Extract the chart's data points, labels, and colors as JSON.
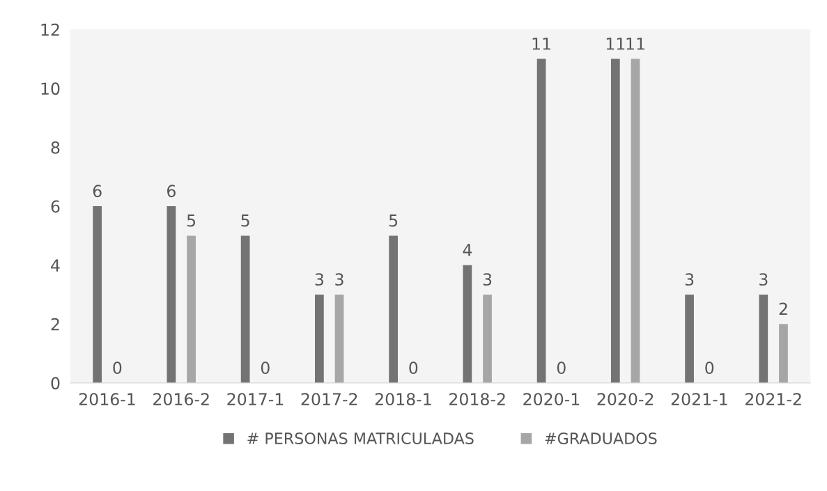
{
  "chart_data": {
    "type": "bar",
    "categories": [
      "2016-1",
      "2016-2",
      "2017-1",
      "2017-2",
      "2018-1",
      "2018-2",
      "2020-1",
      "2020-2",
      "2021-1",
      "2021-2"
    ],
    "series": [
      {
        "name": "# PERSONAS MATRICULADAS",
        "color": "#737373",
        "values": [
          6,
          6,
          5,
          3,
          5,
          4,
          11,
          11,
          3,
          3
        ]
      },
      {
        "name": "#GRADUADOS",
        "color": "#a6a6a6",
        "values": [
          0,
          5,
          0,
          3,
          0,
          3,
          0,
          11,
          0,
          2
        ]
      }
    ],
    "ylim": [
      0,
      12
    ],
    "yticks": [
      0,
      2,
      4,
      6,
      8,
      10,
      12
    ],
    "grid": false,
    "legend": "bottom",
    "data_labels": true
  }
}
